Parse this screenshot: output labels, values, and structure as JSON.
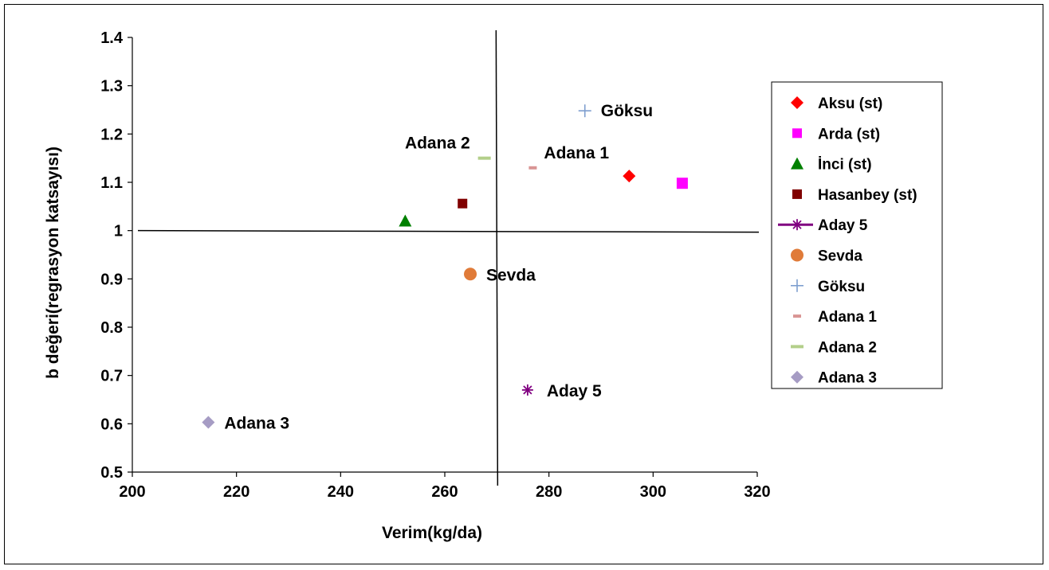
{
  "chart_data": {
    "type": "scatter",
    "xlabel": "Verim(kg/da)",
    "ylabel": "b değeri(regrasyon katsayısı)",
    "xlim": [
      200,
      320
    ],
    "ylim": [
      0.5,
      1.4
    ],
    "x_ticks": [
      "200",
      "220",
      "240",
      "260",
      "280",
      "300",
      "320"
    ],
    "y_ticks": [
      "0.5",
      "0.6",
      "0.7",
      "0.8",
      "0.9",
      "1",
      "1.1",
      "1.2",
      "1.3",
      "1.4"
    ],
    "reference_lines": {
      "vertical_x": 270,
      "horizontal_y": 1
    },
    "legend_position": "right",
    "series": [
      {
        "name": "Aksu (st)",
        "x": 295.4,
        "y": 1.113,
        "marker": "diamond",
        "color": "#ff0000",
        "point_label": ""
      },
      {
        "name": "Arda (st)",
        "x": 305.6,
        "y": 1.098,
        "marker": "square",
        "color": "#ff00ff",
        "point_label": ""
      },
      {
        "name": "İnci (st)",
        "x": 252.4,
        "y": 1.02,
        "marker": "triangle",
        "color": "#008000",
        "point_label": ""
      },
      {
        "name": "Hasanbey (st)",
        "x": 263.4,
        "y": 1.056,
        "marker": "square-small",
        "color": "#800000",
        "point_label": ""
      },
      {
        "name": "Aday 5",
        "x": 275.9,
        "y": 0.67,
        "marker": "star",
        "color": "#800080",
        "point_label": "Aday 5"
      },
      {
        "name": "Sevda",
        "x": 264.9,
        "y": 0.91,
        "marker": "circle",
        "color": "#e07b39",
        "point_label": "Sevda"
      },
      {
        "name": "Göksu",
        "x": 286.9,
        "y": 1.248,
        "marker": "plus",
        "color": "#7f9fcf",
        "point_label": "Göksu"
      },
      {
        "name": "Adana 1",
        "x": 276.9,
        "y": 1.13,
        "marker": "dash",
        "color": "#d99594",
        "point_label": "Adana 1"
      },
      {
        "name": "Adana 2",
        "x": 267.6,
        "y": 1.15,
        "marker": "dash-long",
        "color": "#b3cf8a",
        "point_label": "Adana 2"
      },
      {
        "name": "Adana 3",
        "x": 214.6,
        "y": 0.603,
        "marker": "diamond",
        "color": "#a69cc4",
        "point_label": "Adana 3"
      }
    ]
  }
}
